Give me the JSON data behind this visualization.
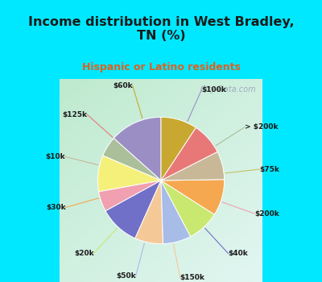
{
  "title": "Income distribution in West Bradley,\nTN (%)",
  "subtitle": "Hispanic or Latino residents",
  "labels": [
    "$100k",
    "> $200k",
    "$75k",
    "$200k",
    "$40k",
    "$150k",
    "$50k",
    "$20k",
    "$30k",
    "$10k",
    "$125k",
    "$60k"
  ],
  "values": [
    13,
    5,
    9,
    5,
    10,
    7,
    7,
    8,
    9,
    7,
    8,
    9
  ],
  "colors": [
    "#9b8ec4",
    "#aabf9a",
    "#f5f07a",
    "#f0a0b0",
    "#7070c8",
    "#f5c898",
    "#a8bce8",
    "#c8e870",
    "#f5a850",
    "#c8b898",
    "#e87878",
    "#c8a830"
  ],
  "bg_color_top": "#00e8ff",
  "chart_bg_topleft": "#b8e8d0",
  "chart_bg_bottomright": "#e0f8f8",
  "watermark": "City-Data.com",
  "startangle": 90,
  "label_colors": [
    "#9b8ec4",
    "#aabf9a",
    "#c8c060",
    "#f0a0b0",
    "#7070c8",
    "#f5c898",
    "#a8bce8",
    "#c8e870",
    "#f5a850",
    "#c8b898",
    "#e87878",
    "#c8a830"
  ],
  "subtitle_color": "#e06020",
  "title_color": "#1a1a1a"
}
